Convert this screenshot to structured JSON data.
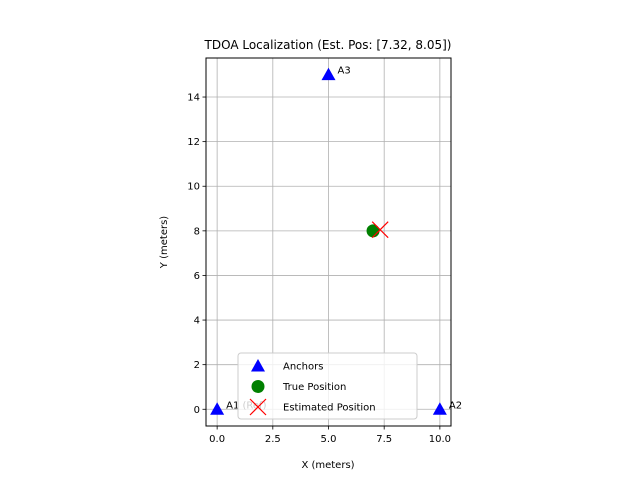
{
  "chart_data": {
    "type": "scatter",
    "title": "TDOA Localization (Est. Pos: [7.32, 8.05])",
    "xlabel": "X (meters)",
    "ylabel": "Y (meters)",
    "xlim": [
      -0.5,
      10.5
    ],
    "ylim": [
      -0.75,
      15.75
    ],
    "xticks": [
      0.0,
      2.5,
      5.0,
      7.5,
      10.0
    ],
    "xtick_labels": [
      "0.0",
      "2.5",
      "5.0",
      "7.5",
      "10.0"
    ],
    "yticks": [
      0,
      2,
      4,
      6,
      8,
      10,
      12,
      14
    ],
    "ytick_labels": [
      "0",
      "2",
      "4",
      "6",
      "8",
      "10",
      "12",
      "14"
    ],
    "grid": true,
    "legend_position": "lower-center",
    "series": [
      {
        "name": "Anchors",
        "marker": "triangle",
        "color": "#0000ff",
        "points": [
          {
            "x": 0,
            "y": 0,
            "label": "A1 (Ref)"
          },
          {
            "x": 10,
            "y": 0,
            "label": "A2"
          },
          {
            "x": 5,
            "y": 15,
            "label": "A3"
          }
        ]
      },
      {
        "name": "True Position",
        "marker": "circle",
        "color": "#008000",
        "points": [
          {
            "x": 7,
            "y": 8
          }
        ]
      },
      {
        "name": "Estimated Position",
        "marker": "x",
        "color": "#ff0000",
        "points": [
          {
            "x": 7.32,
            "y": 8.05
          }
        ]
      }
    ]
  }
}
